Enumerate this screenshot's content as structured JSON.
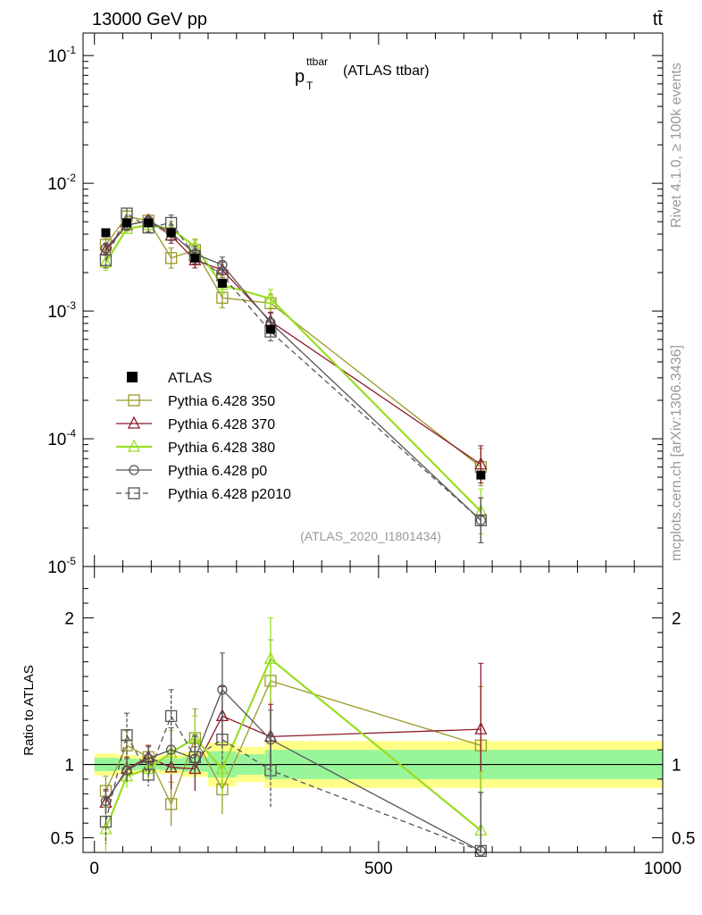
{
  "header": {
    "energy_label": "13000 GeV pp",
    "process_label": "tt̄"
  },
  "side_text": {
    "rivet": "Rivet 4.1.0, ≥ 100k events",
    "site": "mcplots.cern.ch [arXiv:1306.3436]"
  },
  "chart_data": [
    {
      "type": "line",
      "title_main": "p",
      "title_sup": "ttbar",
      "title_sub": "T",
      "title_rest": "(ATLAS ttbar)",
      "analysis_id": "(ATLAS_2020_I1801434)",
      "yscale": "log",
      "ylim": [
        1e-05,
        0.15
      ],
      "xlim": [
        -20,
        1000
      ],
      "ytick_labels": [
        "10^-1",
        "10^-2",
        "10^-3",
        "10^-4",
        "10^-5"
      ],
      "legend": [
        "ATLAS",
        "Pythia 6.428 350",
        "Pythia 6.428 370",
        "Pythia 6.428 380",
        "Pythia 6.428 p0",
        "Pythia 6.428 p2010"
      ],
      "x": [
        20,
        57,
        95,
        135,
        177,
        225,
        310,
        680
      ],
      "data": {
        "name": "ATLAS",
        "color": "#000000",
        "values": [
          0.0041,
          0.0049,
          0.0049,
          0.0041,
          0.0026,
          0.00165,
          0.00072,
          5.2e-05
        ],
        "band_x_edges": [
          0,
          40,
          75,
          115,
          155,
          200,
          250,
          300,
          370,
          1000
        ],
        "band_yellow": [
          0.075,
          0.065,
          0.055,
          0.065,
          0.085,
          0.15,
          0.12,
          0.16,
          0.16
        ],
        "band_green": [
          0.045,
          0.04,
          0.035,
          0.04,
          0.05,
          0.09,
          0.07,
          0.1,
          0.1
        ]
      },
      "series": [
        {
          "name": "Pythia 6.428 350",
          "color": "#9A9A2A",
          "marker": "square",
          "dash": "",
          "width": 1.3,
          "values": [
            0.0033,
            0.0055,
            0.0051,
            0.0026,
            0.003,
            0.00127,
            0.00115,
            6e-05
          ],
          "errors": [
            0.12,
            0.1,
            0.08,
            0.2,
            0.2,
            0.2,
            0.18,
            0.4
          ]
        },
        {
          "name": "Pythia 6.428 370",
          "color": "#8B1A2B",
          "marker": "triangle",
          "dash": "",
          "width": 1.3,
          "values": [
            0.003,
            0.0047,
            0.0051,
            0.0039,
            0.0025,
            0.0021,
            0.00083,
            6.3e-05
          ],
          "errors": [
            0.1,
            0.1,
            0.08,
            0.15,
            0.15,
            0.15,
            0.18,
            0.4
          ]
        },
        {
          "name": "Pythia 6.428 380",
          "color": "#99DD22",
          "marker": "triangle",
          "dash": "",
          "width": 2.2,
          "values": [
            0.0024,
            0.0044,
            0.0047,
            0.0044,
            0.0032,
            0.0016,
            0.00125,
            2.7e-05
          ],
          "errors": [
            0.15,
            0.08,
            0.08,
            0.15,
            0.15,
            0.18,
            0.18,
            0.5
          ]
        },
        {
          "name": "Pythia 6.428 p0",
          "color": "#555555",
          "marker": "circle",
          "dash": "",
          "width": 1.3,
          "values": [
            0.0031,
            0.0047,
            0.0051,
            0.0041,
            0.0028,
            0.0023,
            0.00081,
            2.3e-05
          ],
          "errors": [
            0.1,
            0.1,
            0.08,
            0.15,
            0.15,
            0.15,
            0.18,
            0.5
          ]
        },
        {
          "name": "Pythia 6.428 p2010",
          "color": "#555555",
          "marker": "square",
          "dash": "6,4",
          "width": 1.3,
          "values": [
            0.0025,
            0.0058,
            0.0045,
            0.0049,
            0.0027,
            0.0019,
            0.00069,
            2.3e-05
          ],
          "errors": [
            0.15,
            0.1,
            0.08,
            0.15,
            0.15,
            0.15,
            0.18,
            0.5
          ]
        }
      ]
    },
    {
      "type": "line",
      "ylabel": "Ratio to ATLAS",
      "ylim": [
        0.4,
        2.35
      ],
      "ytick_values": [
        0.5,
        1,
        2
      ],
      "ytick_labels": [
        "0.5",
        "1",
        "2"
      ],
      "xtick_values": [
        0,
        500,
        1000
      ],
      "xtick_labels": [
        "0",
        "500",
        "1000"
      ],
      "x": [
        20,
        57,
        95,
        135,
        177,
        225,
        310,
        680
      ],
      "series": [
        {
          "name": "Pythia 6.428 350",
          "values": [
            0.82,
            1.13,
            1.05,
            0.73,
            1.18,
            0.83,
            1.57,
            1.13
          ],
          "errors": [
            0.1,
            0.1,
            0.08,
            0.15,
            0.2,
            0.17,
            0.28,
            0.4
          ]
        },
        {
          "name": "Pythia 6.428 370",
          "values": [
            0.74,
            0.97,
            1.05,
            0.98,
            0.97,
            1.33,
            1.19,
            1.24
          ],
          "errors": [
            0.08,
            0.08,
            0.08,
            0.15,
            0.15,
            0.2,
            0.22,
            0.45
          ]
        },
        {
          "name": "Pythia 6.428 380",
          "values": [
            0.56,
            0.92,
            0.97,
            1.08,
            1.18,
            0.97,
            1.72,
            0.55
          ],
          "errors": [
            0.15,
            0.08,
            0.08,
            0.15,
            0.15,
            0.18,
            0.28,
            0.4
          ]
        },
        {
          "name": "Pythia 6.428 p0",
          "values": [
            0.75,
            0.96,
            1.04,
            1.1,
            1.04,
            1.51,
            1.17,
            0.41
          ],
          "errors": [
            0.08,
            0.08,
            0.08,
            0.15,
            0.15,
            0.25,
            0.2,
            0.4
          ]
        },
        {
          "name": "Pythia 6.428 p2010",
          "values": [
            0.61,
            1.2,
            0.93,
            1.33,
            1.05,
            1.17,
            0.96,
            0.41
          ],
          "errors": [
            0.15,
            0.15,
            0.08,
            0.18,
            0.15,
            0.18,
            0.25,
            0.4
          ]
        }
      ]
    }
  ]
}
